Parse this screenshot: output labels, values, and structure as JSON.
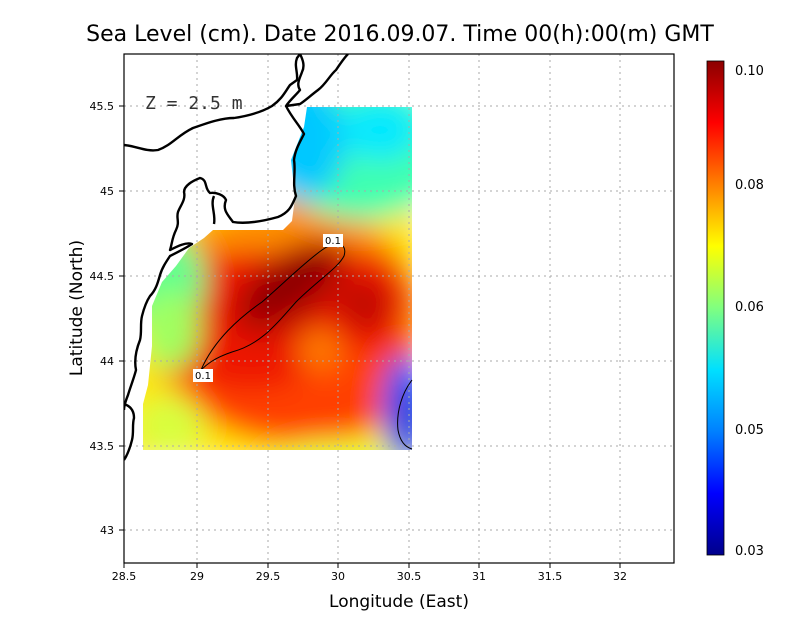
{
  "title": "Sea Level (cm). Date 2016.09.07. Time 00(h):00(m) GMT",
  "depth_label": "Z = 2.5 m",
  "chart_data": {
    "type": "heatmap",
    "title": "Sea Level (cm). Date 2016.09.07. Time 00(h):00(m) GMT",
    "xlabel": "Longitude (East)",
    "ylabel": "Latitude (North)",
    "xlim": [
      28.5,
      32.4
    ],
    "ylim": [
      42.8,
      45.8
    ],
    "xticks": [
      28.5,
      29,
      29.5,
      30,
      30.5,
      31,
      31.5,
      32
    ],
    "xtick_labels": [
      "28.5",
      "29",
      "29.5",
      "30",
      "30.5",
      "31",
      "31.5",
      "32"
    ],
    "yticks": [
      43,
      43.5,
      44,
      44.5,
      45,
      45.5
    ],
    "ytick_labels": [
      "43",
      "43.5",
      "44",
      "44.5",
      "45",
      "45.5"
    ],
    "grid": true,
    "data_domain": {
      "lon": [
        28.63,
        30.55
      ],
      "lat": [
        43.49,
        45.49
      ]
    },
    "colorbar": {
      "min": 0.03,
      "max": 0.1,
      "ticks": [
        0.03,
        0.05,
        0.06,
        0.08,
        0.1
      ],
      "tick_labels": [
        "0.03",
        "0.05",
        "0.06",
        "0.08",
        "0.10"
      ]
    },
    "contours": [
      {
        "level": 0.1,
        "label": "0.1"
      },
      {
        "level": 0.1,
        "label": "0.1"
      }
    ],
    "field_features": [
      {
        "lon": 29.7,
        "lat": 44.45,
        "value": 0.1,
        "kind": "maximum"
      },
      {
        "lon": 30.3,
        "lat": 44.3,
        "value": 0.09,
        "kind": "high"
      },
      {
        "lon": 29.9,
        "lat": 45.2,
        "value": 0.055,
        "kind": "low"
      },
      {
        "lon": 30.5,
        "lat": 43.7,
        "value": 0.035,
        "kind": "minimum"
      }
    ]
  },
  "colors": {
    "colormap": [
      "#00008b",
      "#0000ff",
      "#0080ff",
      "#00e0ff",
      "#80ff80",
      "#ffff00",
      "#ff8000",
      "#ff0000",
      "#8b0000"
    ],
    "grid": "#aaaaaa",
    "coast": "#000000"
  }
}
